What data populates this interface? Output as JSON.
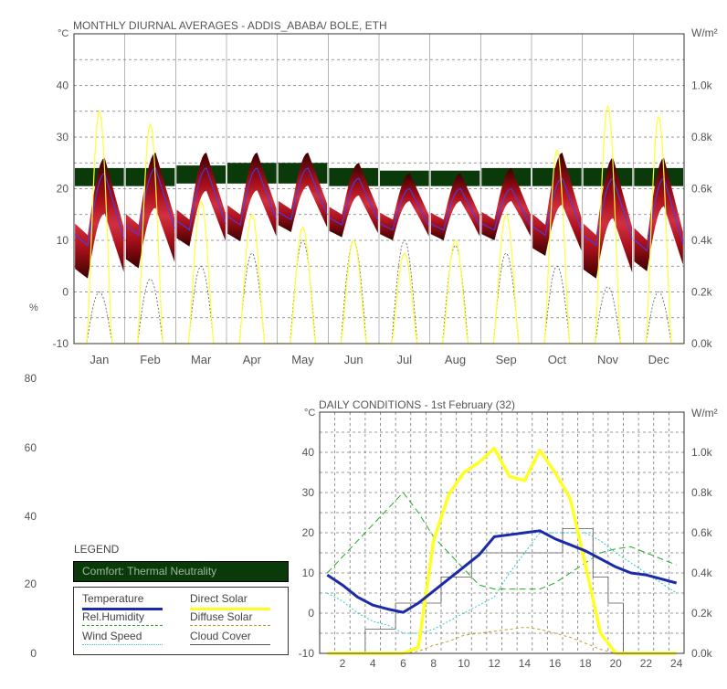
{
  "chart_data": [
    {
      "type": "area",
      "title": "MONTHLY DIURNAL AVERAGES - ADDIS_ABABA/ BOLE, ETH",
      "y_left_unit": "°C",
      "y_right_unit": "W/m²",
      "y_left_ticks": [
        "-10",
        "0",
        "10",
        "20",
        "30",
        "40"
      ],
      "y_right_ticks": [
        "0.0k",
        "0.2k",
        "0.4k",
        "0.6k",
        "0.8k",
        "1.0k"
      ],
      "ylim_left": [
        -10,
        50
      ],
      "ylim_right": [
        0,
        1.2
      ],
      "months": [
        "Jan",
        "Feb",
        "Mar",
        "Apr",
        "May",
        "Jun",
        "Jul",
        "Aug",
        "Sep",
        "Oct",
        "Nov",
        "Dec"
      ],
      "comfort_band": [
        {
          "low": 20.5,
          "high": 24
        },
        {
          "low": 20.5,
          "high": 24
        },
        {
          "low": 21,
          "high": 24.5
        },
        {
          "low": 21,
          "high": 25
        },
        {
          "low": 21,
          "high": 25
        },
        {
          "low": 20.5,
          "high": 24
        },
        {
          "low": 20.5,
          "high": 23.5
        },
        {
          "low": 20.5,
          "high": 23.5
        },
        {
          "low": 20.5,
          "high": 24
        },
        {
          "low": 20.5,
          "high": 24
        },
        {
          "low": 20.5,
          "high": 24
        },
        {
          "low": 20.5,
          "high": 24
        }
      ],
      "monthly_temperature": [
        {
          "min": 9,
          "max": 23,
          "range_low": 1,
          "range_high": 26
        },
        {
          "min": 11,
          "max": 24,
          "range_low": 3,
          "range_high": 27
        },
        {
          "min": 12,
          "max": 24,
          "range_low": 8,
          "range_high": 27
        },
        {
          "min": 13,
          "max": 24,
          "range_low": 9,
          "range_high": 27
        },
        {
          "min": 14,
          "max": 24,
          "range_low": 11,
          "range_high": 27
        },
        {
          "min": 13,
          "max": 22,
          "range_low": 10,
          "range_high": 25
        },
        {
          "min": 12,
          "max": 20,
          "range_low": 10,
          "range_high": 23
        },
        {
          "min": 12,
          "max": 20,
          "range_low": 10,
          "range_high": 23
        },
        {
          "min": 12,
          "max": 20,
          "range_low": 10,
          "range_high": 24
        },
        {
          "min": 11,
          "max": 22,
          "range_low": 6,
          "range_high": 27
        },
        {
          "min": 9,
          "max": 22,
          "range_low": 1,
          "range_high": 26
        },
        {
          "min": 8,
          "max": 22,
          "range_low": 3,
          "range_high": 26
        }
      ],
      "monthly_direct_solar_peak": [
        0.9,
        0.85,
        0.55,
        0.5,
        0.45,
        0.4,
        0.35,
        0.4,
        0.5,
        0.75,
        0.92,
        0.88
      ],
      "monthly_diffuse_solar_peak": [
        0.2,
        0.25,
        0.3,
        0.35,
        0.4,
        0.4,
        0.4,
        0.38,
        0.35,
        0.3,
        0.22,
        0.2
      ]
    },
    {
      "type": "line",
      "title": "DAILY CONDITIONS - 1st February (32)",
      "y_left_unit": "°C",
      "y_right_unit": "W/m²",
      "y_left_ticks": [
        "-10",
        "0",
        "10",
        "20",
        "30",
        "40"
      ],
      "y_right_ticks": [
        "0.0k",
        "0.2k",
        "0.4k",
        "0.6k",
        "0.8k",
        "1.0k"
      ],
      "x_ticks": [
        "2",
        "4",
        "6",
        "8",
        "10",
        "12",
        "14",
        "16",
        "18",
        "20",
        "22",
        "24"
      ],
      "hours": [
        1,
        2,
        3,
        4,
        5,
        6,
        7,
        8,
        9,
        10,
        11,
        12,
        13,
        14,
        15,
        16,
        17,
        18,
        19,
        20,
        21,
        22,
        23,
        24
      ],
      "ylim_left": [
        -10,
        50
      ],
      "ylim_right": [
        0,
        1.2
      ],
      "series": [
        {
          "name": "Temperature",
          "axis": "left",
          "color": "#1a2aa8",
          "values": [
            9.5,
            7,
            4,
            2,
            1,
            0.2,
            2.5,
            5.5,
            8.5,
            11.5,
            14.5,
            19,
            19.5,
            20,
            20.5,
            18.5,
            17,
            15.5,
            13.5,
            11.5,
            10,
            9.5,
            8.5,
            7.5
          ]
        },
        {
          "name": "Rel.Humidity",
          "axis": "right",
          "color": "#22aa22",
          "values": [
            0.4,
            0.48,
            0.56,
            0.64,
            0.72,
            0.8,
            0.7,
            0.58,
            0.5,
            0.42,
            0.34,
            0.32,
            0.32,
            0.32,
            0.32,
            0.35,
            0.4,
            0.45,
            0.5,
            0.52,
            0.53,
            0.5,
            0.47,
            0.44
          ]
        },
        {
          "name": "Wind Speed",
          "axis": "right",
          "color": "#33cccc",
          "values": [
            0.3,
            0.26,
            0.2,
            0.16,
            0.14,
            0.1,
            0.1,
            0.12,
            0.16,
            0.2,
            0.24,
            0.28,
            0.4,
            0.5,
            0.6,
            0.6,
            0.6,
            0.6,
            0.56,
            0.5,
            0.45,
            0.4,
            0.35,
            0.3
          ]
        },
        {
          "name": "Direct Solar",
          "axis": "right",
          "color": "#ffff22",
          "values": [
            0,
            0,
            0,
            0,
            0,
            0,
            0.03,
            0.56,
            0.79,
            0.9,
            0.95,
            1.02,
            0.88,
            0.86,
            1.01,
            0.9,
            0.77,
            0.44,
            0.1,
            0,
            0,
            0,
            0,
            0
          ]
        },
        {
          "name": "Diffuse Solar",
          "axis": "right",
          "color": "#b8a020",
          "values": [
            0,
            0,
            0,
            0,
            0,
            0,
            0.01,
            0.04,
            0.06,
            0.09,
            0.1,
            0.11,
            0.12,
            0.13,
            0.12,
            0.1,
            0.08,
            0.05,
            0.02,
            0,
            0,
            0,
            0,
            0
          ]
        },
        {
          "name": "Cloud Cover",
          "axis": "right",
          "color": "#555555",
          "values": [
            0,
            0,
            0,
            0.12,
            0.12,
            0.25,
            0.25,
            0.25,
            0.38,
            0.38,
            0.5,
            0.5,
            0.5,
            0.5,
            0.5,
            0.5,
            0.62,
            0.62,
            0.38,
            0.25,
            0,
            0,
            0,
            0
          ]
        }
      ]
    }
  ],
  "side_axis": {
    "unit": "%",
    "ticks": [
      "0",
      "20",
      "40",
      "60",
      "80"
    ]
  },
  "legend": {
    "title": "LEGEND",
    "comfort_label": "Comfort: Thermal Neutrality",
    "items": [
      {
        "label": "Temperature",
        "color": "#1a2aa8",
        "style": "solid-thick"
      },
      {
        "label": "Direct Solar",
        "color": "#ffff22",
        "style": "solid-thick"
      },
      {
        "label": "Rel.Humidity",
        "color": "#22aa22",
        "style": "dashed"
      },
      {
        "label": "Diffuse Solar",
        "color": "#b8a020",
        "style": "dashed"
      },
      {
        "label": "Wind Speed",
        "color": "#33cccc",
        "style": "dotted"
      },
      {
        "label": "Cloud Cover",
        "color": "#555555",
        "style": "solid"
      }
    ]
  }
}
